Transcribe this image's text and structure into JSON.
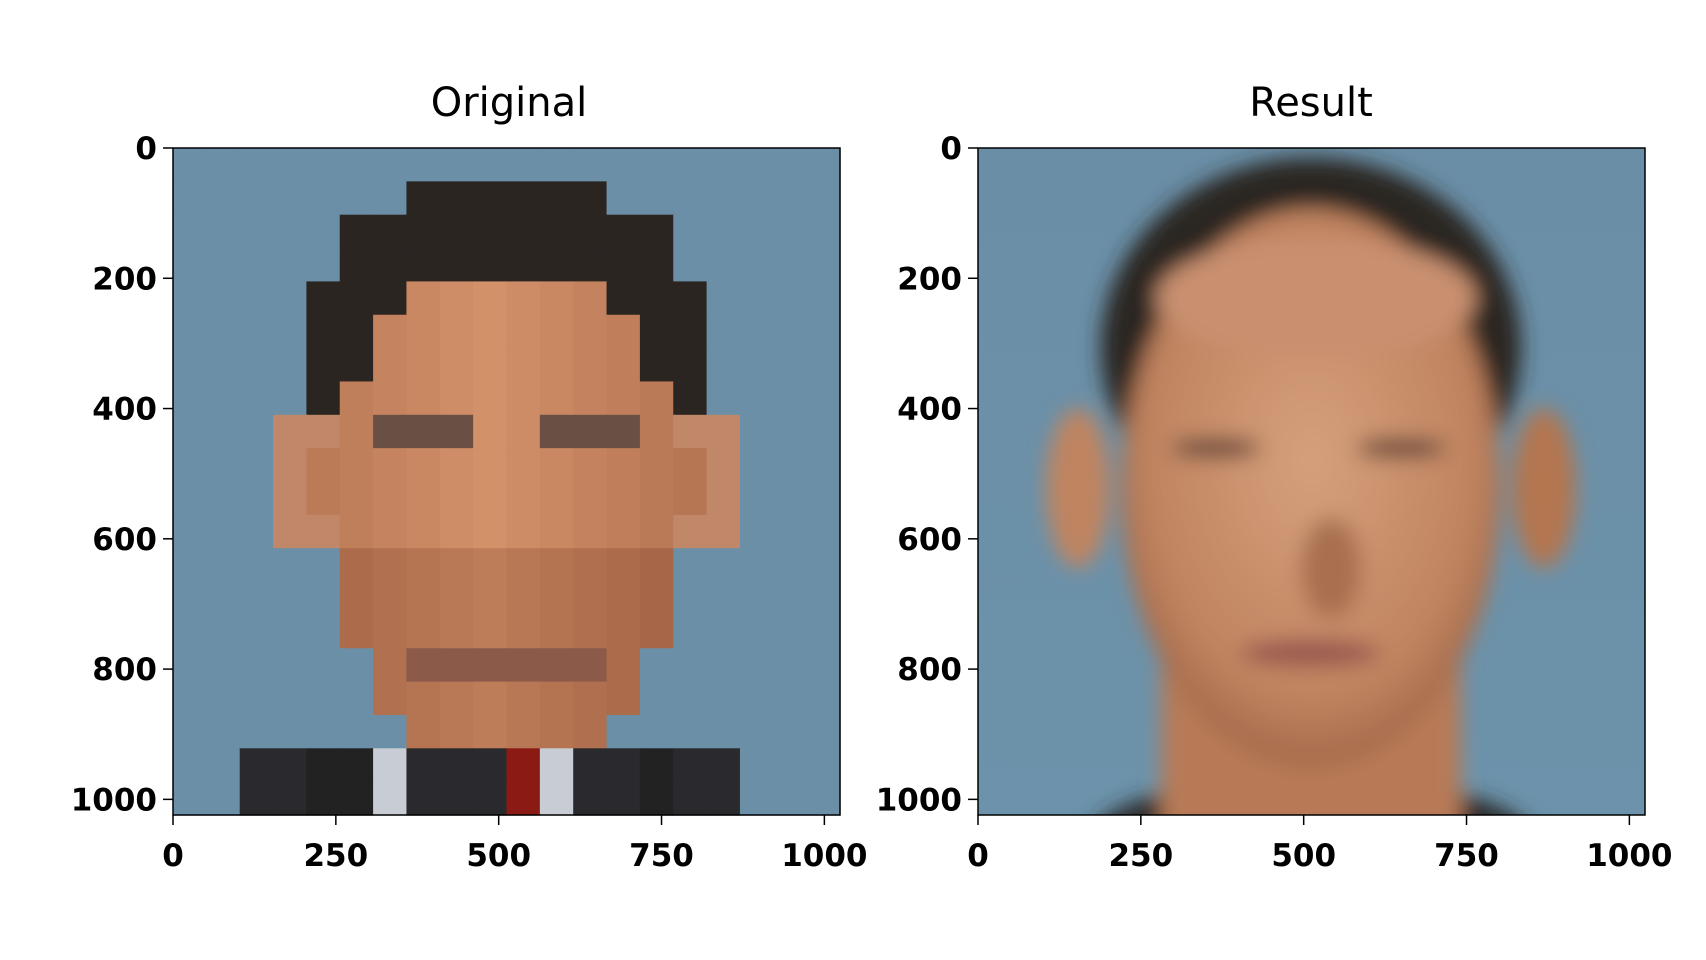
{
  "chart_data": [
    {
      "type": "image",
      "title": "Original",
      "xticks": [
        "0",
        "250",
        "500",
        "750",
        "1000"
      ],
      "yticks": [
        "0",
        "200",
        "400",
        "600",
        "800",
        "1000"
      ],
      "xlim": [
        0,
        1024
      ],
      "ylim": [
        1024,
        0
      ],
      "content": "pixelated face"
    },
    {
      "type": "image",
      "title": "Result",
      "xticks": [
        "0",
        "250",
        "500",
        "750",
        "1000"
      ],
      "yticks": [
        "0",
        "200",
        "400",
        "600",
        "800",
        "1000"
      ],
      "xlim": [
        0,
        1024
      ],
      "ylim": [
        1024,
        0
      ],
      "content": "reconstructed face"
    }
  ],
  "colors": {
    "background": "#6b8fa6",
    "skin": "#c98a62",
    "hair": "#2b2522"
  }
}
